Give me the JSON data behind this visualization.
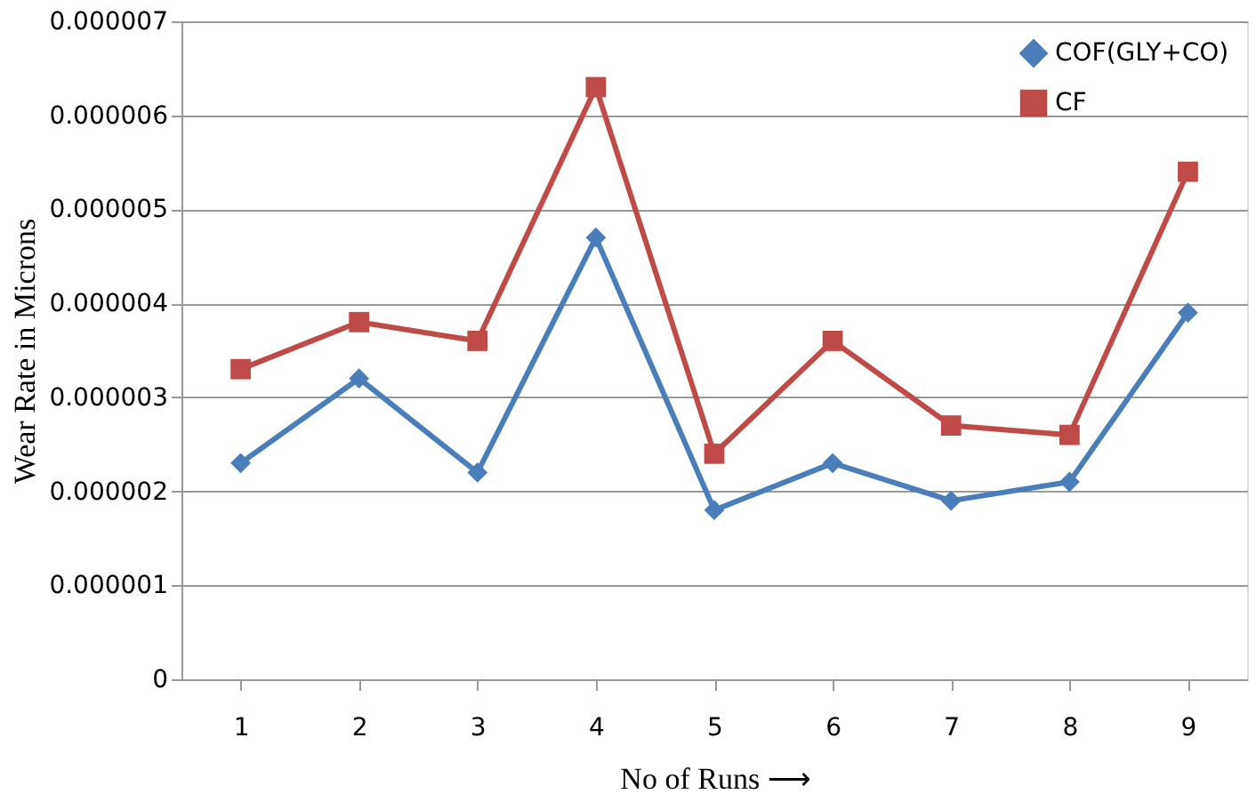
{
  "chart_data": {
    "type": "line",
    "xlabel": "No of Runs ⟶",
    "ylabel": "Wear Rate in Microns",
    "categories": [
      "1",
      "2",
      "3",
      "4",
      "5",
      "6",
      "7",
      "8",
      "9"
    ],
    "series": [
      {
        "name": "COF(GLY+CO)",
        "color": "#4a7ebb",
        "marker": "diamond",
        "values": [
          2.3e-06,
          3.2e-06,
          2.2e-06,
          4.7e-06,
          1.8e-06,
          2.3e-06,
          1.9e-06,
          2.1e-06,
          3.9e-06
        ]
      },
      {
        "name": "CF",
        "color": "#be4b48",
        "marker": "square",
        "values": [
          3.3e-06,
          3.8e-06,
          3.6e-06,
          6.3e-06,
          2.4e-06,
          3.6e-06,
          2.7e-06,
          2.6e-06,
          5.4e-06
        ]
      }
    ],
    "ylim": [
      0,
      7e-06
    ],
    "yticks": [
      0,
      {
        "value": 1e-06,
        "label": "0.000001"
      },
      {
        "value": 2e-06,
        "label": "0.000002"
      },
      {
        "value": 3e-06,
        "label": "0.000003"
      },
      {
        "value": 4e-06,
        "label": "0.000004"
      },
      {
        "value": 5e-06,
        "label": "0.000005"
      },
      {
        "value": 6e-06,
        "label": "0.000006"
      },
      {
        "value": 7e-06,
        "label": "0.000007"
      }
    ],
    "grid": "y",
    "legend": "top right",
    "line_style": "solid"
  }
}
